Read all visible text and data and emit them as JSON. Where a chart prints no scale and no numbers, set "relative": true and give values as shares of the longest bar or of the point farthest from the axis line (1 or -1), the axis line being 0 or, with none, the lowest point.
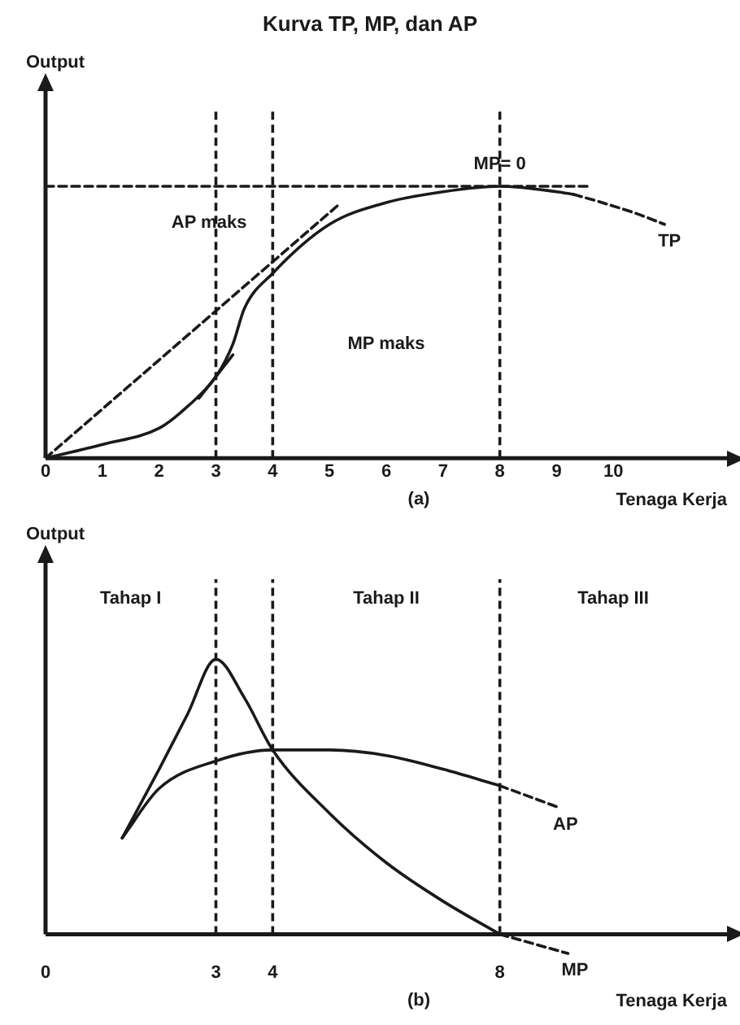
{
  "chart_data": [
    {
      "type": "line",
      "title": "Kurva TP, MP, dan AP",
      "xlabel": "Tenaga Kerja",
      "ylabel": "Output",
      "relative": true,
      "xlim": [
        0,
        12
      ],
      "xticks": [
        0,
        1,
        2,
        3,
        4,
        5,
        6,
        7,
        8,
        9,
        10
      ],
      "series": [
        {
          "color": "#1a1a1a",
          "line_style": "solid",
          "x": [
            0,
            1,
            2,
            2.5,
            3,
            3.3,
            3.5,
            4,
            5,
            6,
            7,
            8,
            9,
            9.3
          ],
          "values": [
            0,
            0.05,
            0.11,
            0.19,
            0.3,
            0.42,
            0.55,
            0.68,
            0.86,
            0.94,
            0.98,
            1,
            0.98,
            0.97
          ]
        },
        {
          "name": "TP",
          "color": "#1a1a1a",
          "line_style": "dashed",
          "x": [
            9.3,
            9.8,
            10.4,
            10.9
          ],
          "values": [
            0.97,
            0.94,
            0.9,
            0.86
          ]
        },
        {
          "color": "#1a1a1a",
          "line_style": "dashed",
          "x": [
            0,
            5.15
          ],
          "values": [
            0,
            0.93
          ]
        },
        {
          "color": "#1a1a1a",
          "line_style": "solid",
          "x": [
            2.7,
            3.3
          ],
          "values": [
            0.22,
            0.38
          ]
        },
        {
          "color": "#1a1a1a",
          "line_style": "dashed",
          "x": [
            0,
            9.6
          ],
          "values": [
            1,
            1
          ]
        }
      ],
      "ref_lines": [
        {
          "axis": "x",
          "value": 3,
          "line_style": "dashed"
        },
        {
          "axis": "x",
          "value": 4,
          "line_style": "dashed"
        },
        {
          "axis": "x",
          "value": 8,
          "line_style": "dashed"
        }
      ],
      "annotations": [
        "(a)",
        "AP maks",
        "MP maks",
        {
          "text": "MP= 0",
          "x": 8,
          "y": 1
        }
      ]
    },
    {
      "type": "line",
      "xlabel": "Tenaga Kerja",
      "ylabel": "Output",
      "relative": true,
      "xlim": [
        0,
        12
      ],
      "xticks": [
        0,
        3,
        4,
        8
      ],
      "series": [
        {
          "color": "#1a1a1a",
          "line_style": "solid",
          "x": [
            1.35,
            2,
            2.5,
            3,
            3.5,
            4,
            5,
            6,
            7,
            8
          ],
          "values": [
            0.35,
            0.6,
            0.8,
            1,
            0.86,
            0.67,
            0.44,
            0.26,
            0.12,
            0
          ]
        },
        {
          "name": "MP",
          "color": "#1a1a1a",
          "line_style": "dashed",
          "x": [
            8,
            9.2
          ],
          "values": [
            0,
            -0.07
          ]
        },
        {
          "color": "#1a1a1a",
          "line_style": "solid",
          "x": [
            1.35,
            2,
            3,
            4,
            5,
            6,
            7,
            8
          ],
          "values": [
            0.35,
            0.53,
            0.63,
            0.67,
            0.67,
            0.65,
            0.6,
            0.54
          ]
        },
        {
          "name": "AP",
          "color": "#1a1a1a",
          "line_style": "dashed",
          "x": [
            8,
            9.05
          ],
          "values": [
            0.54,
            0.46
          ]
        }
      ],
      "ref_lines": [
        {
          "axis": "x",
          "value": 3,
          "line_style": "dashed"
        },
        {
          "axis": "x",
          "value": 4,
          "line_style": "dashed"
        },
        {
          "axis": "x",
          "value": 8,
          "line_style": "dashed"
        }
      ],
      "annotations": [
        "(b)",
        "Tahap I",
        "Tahap II",
        "Tahap III"
      ]
    }
  ]
}
